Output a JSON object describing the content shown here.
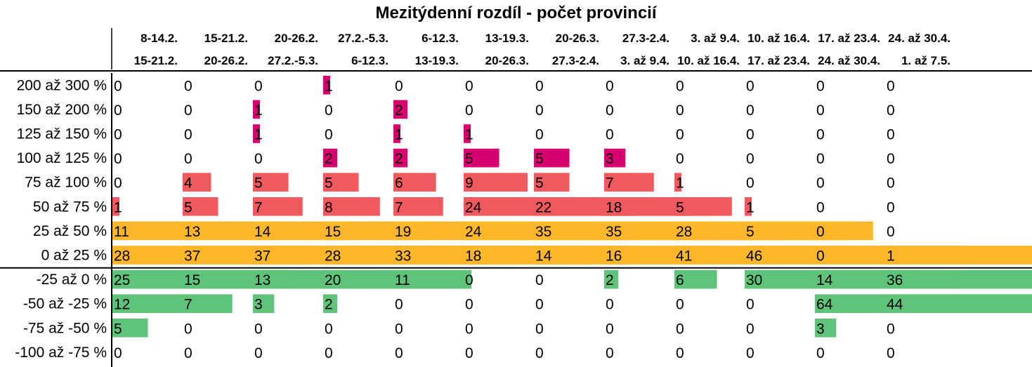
{
  "title": "Mezitýdenní rozdíl - počet provincií",
  "chart_data": {
    "type": "table",
    "title": "Mezitýdenní rozdíl - počet provincií",
    "columns": [
      {
        "line1": "8-14.2.",
        "line2": "15-21.2."
      },
      {
        "line1": "15-21.2.",
        "line2": "20-26.2."
      },
      {
        "line1": "20-26.2.",
        "line2": "27.2.-5.3."
      },
      {
        "line1": "27.2.-5.3.",
        "line2": "6-12.3."
      },
      {
        "line1": "6-12.3.",
        "line2": "13-19.3."
      },
      {
        "line1": "13-19.3.",
        "line2": "20-26.3."
      },
      {
        "line1": "20-26.3.",
        "line2": "27.3-2.4."
      },
      {
        "line1": "27.3-2.4.",
        "line2": "3. až 9.4."
      },
      {
        "line1": "3. až 9.4.",
        "line2": "10. až 16.4."
      },
      {
        "line1": "10. až 16.4.",
        "line2": "17. až 23.4."
      },
      {
        "line1": "17. až 23.4.",
        "line2": "24. až 30.4."
      },
      {
        "line1": "24. až 30.4.",
        "line2": "1. až 7.5."
      }
    ],
    "rows": [
      {
        "label": "200 až 300 %",
        "band": "magenta",
        "values": [
          0,
          0,
          0,
          1,
          0,
          0,
          0,
          0,
          0,
          0,
          0,
          0
        ]
      },
      {
        "label": "150 až 200 %",
        "band": "magenta",
        "values": [
          0,
          0,
          1,
          0,
          2,
          0,
          0,
          0,
          0,
          0,
          0,
          0
        ]
      },
      {
        "label": "125 až 150 %",
        "band": "magenta",
        "values": [
          0,
          0,
          1,
          0,
          1,
          1,
          0,
          0,
          0,
          0,
          0,
          0
        ]
      },
      {
        "label": "100 až 125 %",
        "band": "magenta",
        "values": [
          0,
          0,
          0,
          2,
          2,
          5,
          5,
          3,
          0,
          0,
          0,
          0
        ]
      },
      {
        "label": "75 až 100 %",
        "band": "red",
        "values": [
          0,
          4,
          5,
          5,
          6,
          9,
          5,
          7,
          1,
          0,
          0,
          0
        ]
      },
      {
        "label": "50 až 75 %",
        "band": "red",
        "values": [
          1,
          5,
          7,
          8,
          7,
          24,
          22,
          18,
          5,
          1,
          0,
          0
        ]
      },
      {
        "label": "25 až 50 %",
        "band": "orange",
        "values": [
          11,
          13,
          14,
          15,
          19,
          24,
          35,
          35,
          28,
          5,
          0,
          0
        ]
      },
      {
        "label": "0 až 25 %",
        "band": "orange",
        "values": [
          28,
          37,
          37,
          28,
          33,
          18,
          14,
          16,
          41,
          46,
          0,
          1
        ]
      },
      {
        "label": "-25 až 0 %",
        "band": "green",
        "values": [
          25,
          15,
          13,
          20,
          11,
          0,
          0,
          2,
          6,
          30,
          14,
          36
        ]
      },
      {
        "label": "-50 až -25 %",
        "band": "green",
        "values": [
          12,
          7,
          3,
          2,
          0,
          0,
          0,
          0,
          0,
          0,
          64,
          44
        ]
      },
      {
        "label": "-75 až -50 %",
        "band": "green",
        "values": [
          5,
          0,
          0,
          0,
          0,
          0,
          0,
          0,
          0,
          0,
          3,
          0
        ]
      },
      {
        "label": "-100 až -75 %",
        "band": "green",
        "values": [
          0,
          0,
          0,
          0,
          0,
          0,
          0,
          0,
          0,
          0,
          0,
          0
        ]
      }
    ],
    "band_colors": {
      "magenta": "#d6006f",
      "red": "#f05a5e",
      "orange": "#ffb72a",
      "green": "#5fc47a"
    }
  }
}
